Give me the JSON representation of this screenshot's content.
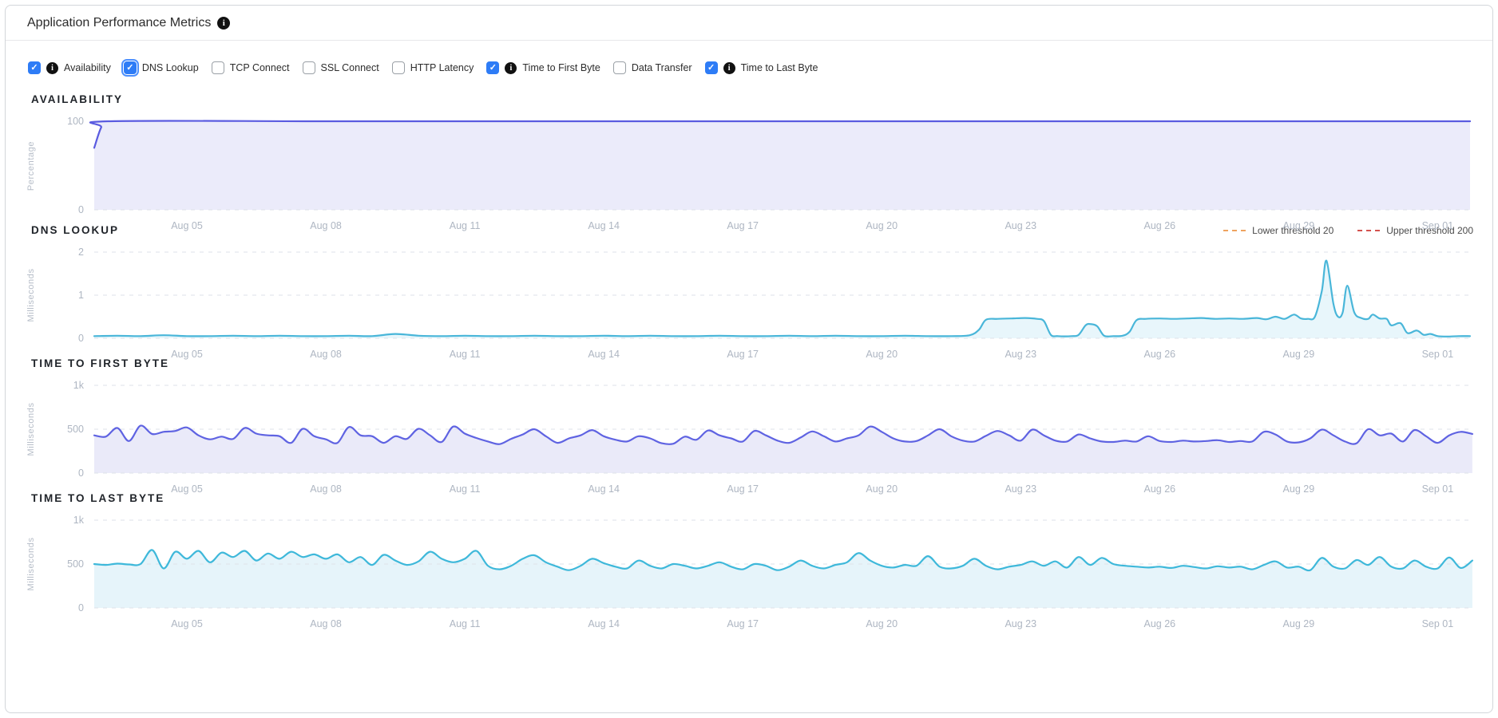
{
  "header": {
    "title": "Application Performance Metrics",
    "info_glyph": "i"
  },
  "controls": {
    "check_glyph": "✓",
    "items": [
      {
        "label": "Availability",
        "checked": true,
        "info": true,
        "focused": false
      },
      {
        "label": "DNS Lookup",
        "checked": true,
        "info": false,
        "focused": true
      },
      {
        "label": "TCP Connect",
        "checked": false,
        "info": false,
        "focused": false
      },
      {
        "label": "SSL Connect",
        "checked": false,
        "info": false,
        "focused": false
      },
      {
        "label": "HTTP Latency",
        "checked": false,
        "info": false,
        "focused": false
      },
      {
        "label": "Time to First Byte",
        "checked": true,
        "info": true,
        "focused": false
      },
      {
        "label": "Data Transfer",
        "checked": false,
        "info": false,
        "focused": false
      },
      {
        "label": "Time to Last Byte",
        "checked": true,
        "info": true,
        "focused": false
      }
    ]
  },
  "axis_style": {
    "grid_color": "#dee2e8",
    "tick_color": "#aeb6c2"
  },
  "chart_data": [
    {
      "id": "availability",
      "type": "area",
      "title": "AVAILABILITY",
      "ylabel": "Percentage",
      "ylim": [
        0,
        100
      ],
      "xlim": [
        0,
        29.7
      ],
      "yticks": [
        {
          "v": 100,
          "label": "100"
        },
        {
          "v": 0,
          "label": "0"
        }
      ],
      "xticks": [
        {
          "v": 2,
          "label": "Aug 05"
        },
        {
          "v": 5,
          "label": "Aug 08"
        },
        {
          "v": 8,
          "label": "Aug 11"
        },
        {
          "v": 11,
          "label": "Aug 14"
        },
        {
          "v": 14,
          "label": "Aug 17"
        },
        {
          "v": 17,
          "label": "Aug 20"
        },
        {
          "v": 20,
          "label": "Aug 23"
        },
        {
          "v": 23,
          "label": "Aug 26"
        },
        {
          "v": 26,
          "label": "Aug 29"
        },
        {
          "v": 29,
          "label": "Sep 01"
        }
      ],
      "line_color": "#5a5be0",
      "fill_color": "#ebebfa",
      "points": [
        [
          0,
          70
        ],
        [
          0.15,
          93
        ],
        [
          0.3,
          100
        ],
        [
          5,
          100
        ],
        [
          10,
          100
        ],
        [
          15,
          100
        ],
        [
          20,
          100
        ],
        [
          25,
          100
        ],
        [
          29.7,
          100
        ]
      ]
    },
    {
      "id": "dns-lookup",
      "type": "area",
      "title": "DNS LOOKUP",
      "ylabel": "Milliseconds",
      "ylim": [
        0,
        2
      ],
      "xlim": [
        0,
        29.7
      ],
      "yticks": [
        {
          "v": 2,
          "label": "2"
        },
        {
          "v": 1,
          "label": "1"
        },
        {
          "v": 0,
          "label": "0"
        }
      ],
      "xticks": [
        {
          "v": 2,
          "label": "Aug 05"
        },
        {
          "v": 5,
          "label": "Aug 08"
        },
        {
          "v": 8,
          "label": "Aug 11"
        },
        {
          "v": 11,
          "label": "Aug 14"
        },
        {
          "v": 14,
          "label": "Aug 17"
        },
        {
          "v": 17,
          "label": "Aug 20"
        },
        {
          "v": 20,
          "label": "Aug 23"
        },
        {
          "v": 23,
          "label": "Aug 26"
        },
        {
          "v": 26,
          "label": "Aug 29"
        },
        {
          "v": 29,
          "label": "Sep 01"
        }
      ],
      "line_color": "#49b6d9",
      "fill_color": "#e8f6fb",
      "legend": [
        {
          "label": "Lower threshold 20",
          "color": "#efa35f"
        },
        {
          "label": "Upper threshold 200",
          "color": "#d4524e"
        }
      ],
      "points": [
        [
          0,
          0.05
        ],
        [
          0.5,
          0.06
        ],
        [
          1,
          0.05
        ],
        [
          1.5,
          0.07
        ],
        [
          2,
          0.05
        ],
        [
          2.5,
          0.05
        ],
        [
          3,
          0.06
        ],
        [
          3.5,
          0.05
        ],
        [
          4,
          0.06
        ],
        [
          4.5,
          0.05
        ],
        [
          5,
          0.05
        ],
        [
          5.5,
          0.06
        ],
        [
          6,
          0.05
        ],
        [
          6.5,
          0.1
        ],
        [
          7,
          0.06
        ],
        [
          7.5,
          0.05
        ],
        [
          8,
          0.06
        ],
        [
          8.5,
          0.05
        ],
        [
          9,
          0.05
        ],
        [
          9.5,
          0.06
        ],
        [
          10,
          0.05
        ],
        [
          10.5,
          0.05
        ],
        [
          11,
          0.06
        ],
        [
          11.5,
          0.05
        ],
        [
          12,
          0.06
        ],
        [
          12.5,
          0.05
        ],
        [
          13,
          0.05
        ],
        [
          13.5,
          0.06
        ],
        [
          14,
          0.05
        ],
        [
          14.5,
          0.05
        ],
        [
          15,
          0.06
        ],
        [
          15.5,
          0.05
        ],
        [
          16,
          0.06
        ],
        [
          16.5,
          0.05
        ],
        [
          17,
          0.05
        ],
        [
          17.5,
          0.06
        ],
        [
          18,
          0.05
        ],
        [
          18.5,
          0.05
        ],
        [
          18.9,
          0.07
        ],
        [
          19.1,
          0.2
        ],
        [
          19.25,
          0.43
        ],
        [
          19.5,
          0.45
        ],
        [
          19.8,
          0.46
        ],
        [
          20.1,
          0.47
        ],
        [
          20.35,
          0.45
        ],
        [
          20.5,
          0.4
        ],
        [
          20.65,
          0.08
        ],
        [
          20.8,
          0.05
        ],
        [
          21.1,
          0.05
        ],
        [
          21.25,
          0.08
        ],
        [
          21.4,
          0.3
        ],
        [
          21.5,
          0.33
        ],
        [
          21.65,
          0.28
        ],
        [
          21.8,
          0.06
        ],
        [
          22,
          0.05
        ],
        [
          22.2,
          0.06
        ],
        [
          22.35,
          0.15
        ],
        [
          22.5,
          0.42
        ],
        [
          22.7,
          0.45
        ],
        [
          23,
          0.46
        ],
        [
          23.3,
          0.45
        ],
        [
          23.6,
          0.46
        ],
        [
          23.9,
          0.47
        ],
        [
          24.2,
          0.45
        ],
        [
          24.5,
          0.46
        ],
        [
          24.8,
          0.45
        ],
        [
          25.1,
          0.47
        ],
        [
          25.3,
          0.44
        ],
        [
          25.5,
          0.5
        ],
        [
          25.7,
          0.45
        ],
        [
          25.9,
          0.55
        ],
        [
          26.05,
          0.46
        ],
        [
          26.2,
          0.45
        ],
        [
          26.35,
          0.5
        ],
        [
          26.5,
          1.1
        ],
        [
          26.6,
          1.8
        ],
        [
          26.75,
          0.8
        ],
        [
          26.85,
          0.5
        ],
        [
          26.95,
          0.6
        ],
        [
          27.05,
          1.22
        ],
        [
          27.2,
          0.6
        ],
        [
          27.35,
          0.47
        ],
        [
          27.5,
          0.45
        ],
        [
          27.6,
          0.55
        ],
        [
          27.75,
          0.46
        ],
        [
          27.9,
          0.45
        ],
        [
          28.0,
          0.3
        ],
        [
          28.2,
          0.35
        ],
        [
          28.35,
          0.12
        ],
        [
          28.55,
          0.18
        ],
        [
          28.7,
          0.08
        ],
        [
          28.85,
          0.1
        ],
        [
          29,
          0.05
        ],
        [
          29.2,
          0.04
        ],
        [
          29.45,
          0.05
        ],
        [
          29.7,
          0.05
        ]
      ]
    },
    {
      "id": "time-to-first-byte",
      "type": "area",
      "title": "TIME TO FIRST BYTE",
      "ylabel": "Milliseconds",
      "ylim": [
        0,
        1000
      ],
      "xlim": [
        0,
        29.7
      ],
      "yticks": [
        {
          "v": 1000,
          "label": "1k"
        },
        {
          "v": 500,
          "label": "500"
        },
        {
          "v": 0,
          "label": "0"
        }
      ],
      "xticks": [
        {
          "v": 2,
          "label": "Aug 05"
        },
        {
          "v": 5,
          "label": "Aug 08"
        },
        {
          "v": 8,
          "label": "Aug 11"
        },
        {
          "v": 11,
          "label": "Aug 14"
        },
        {
          "v": 14,
          "label": "Aug 17"
        },
        {
          "v": 17,
          "label": "Aug 20"
        },
        {
          "v": 20,
          "label": "Aug 23"
        },
        {
          "v": 23,
          "label": "Aug 26"
        },
        {
          "v": 26,
          "label": "Aug 29"
        },
        {
          "v": 29,
          "label": "Sep 01"
        }
      ],
      "line_color": "#5f63e2",
      "fill_color": "#eaeaf9",
      "x0": 0,
      "dx": 0.25,
      "values": [
        430,
        415,
        515,
        365,
        540,
        445,
        470,
        480,
        520,
        430,
        385,
        415,
        390,
        515,
        450,
        430,
        420,
        345,
        505,
        420,
        385,
        345,
        525,
        430,
        420,
        345,
        420,
        390,
        505,
        430,
        355,
        530,
        450,
        400,
        360,
        330,
        390,
        440,
        500,
        420,
        345,
        395,
        430,
        490,
        420,
        380,
        360,
        420,
        395,
        340,
        335,
        415,
        380,
        485,
        430,
        395,
        360,
        480,
        430,
        370,
        345,
        405,
        475,
        420,
        360,
        395,
        430,
        530,
        470,
        395,
        360,
        365,
        430,
        500,
        420,
        370,
        360,
        425,
        480,
        430,
        370,
        495,
        430,
        370,
        360,
        440,
        395,
        360,
        355,
        370,
        360,
        420,
        365,
        355,
        370,
        360,
        365,
        375,
        355,
        365,
        360,
        470,
        440,
        360,
        350,
        395,
        495,
        430,
        360,
        340,
        500,
        430,
        450,
        360,
        490,
        420,
        345,
        430,
        470,
        445
      ]
    },
    {
      "id": "time-to-last-byte",
      "type": "area",
      "title": "TIME TO LAST BYTE",
      "ylabel": "Milliseconds",
      "ylim": [
        0,
        1000
      ],
      "xlim": [
        0,
        29.7
      ],
      "yticks": [
        {
          "v": 1000,
          "label": "1k"
        },
        {
          "v": 500,
          "label": "500"
        },
        {
          "v": 0,
          "label": "0"
        }
      ],
      "xticks": [
        {
          "v": 2,
          "label": "Aug 05"
        },
        {
          "v": 5,
          "label": "Aug 08"
        },
        {
          "v": 8,
          "label": "Aug 11"
        },
        {
          "v": 11,
          "label": "Aug 14"
        },
        {
          "v": 14,
          "label": "Aug 17"
        },
        {
          "v": 17,
          "label": "Aug 20"
        },
        {
          "v": 20,
          "label": "Aug 23"
        },
        {
          "v": 23,
          "label": "Aug 26"
        },
        {
          "v": 26,
          "label": "Aug 29"
        },
        {
          "v": 29,
          "label": "Sep 01"
        }
      ],
      "line_color": "#3eb8da",
      "fill_color": "#e6f4fa",
      "x0": 0,
      "dx": 0.25,
      "values": [
        500,
        490,
        505,
        495,
        500,
        660,
        450,
        640,
        560,
        650,
        520,
        630,
        580,
        650,
        540,
        620,
        560,
        640,
        580,
        610,
        560,
        610,
        520,
        580,
        490,
        605,
        540,
        490,
        530,
        640,
        560,
        520,
        560,
        650,
        480,
        440,
        480,
        560,
        600,
        520,
        470,
        430,
        480,
        560,
        510,
        470,
        450,
        540,
        480,
        450,
        500,
        480,
        450,
        480,
        520,
        470,
        440,
        500,
        480,
        430,
        470,
        540,
        480,
        450,
        490,
        520,
        625,
        540,
        480,
        460,
        490,
        480,
        590,
        470,
        450,
        480,
        560,
        480,
        440,
        470,
        490,
        530,
        480,
        530,
        460,
        580,
        490,
        570,
        500,
        480,
        470,
        460,
        470,
        455,
        480,
        465,
        450,
        475,
        460,
        470,
        440,
        490,
        530,
        460,
        470,
        430,
        570,
        470,
        450,
        545,
        490,
        580,
        470,
        450,
        540,
        470,
        450,
        575,
        455,
        540
      ]
    }
  ]
}
